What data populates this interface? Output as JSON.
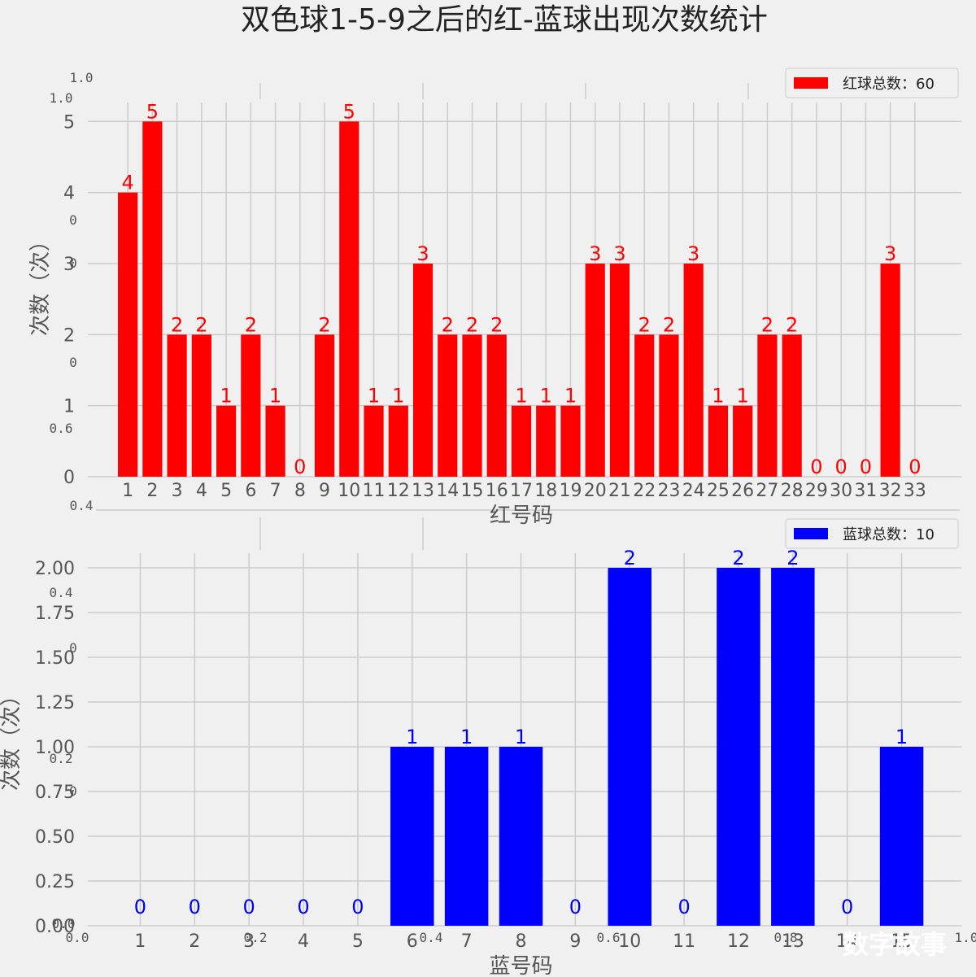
{
  "title": "双色球1-5-9之后的红-蓝球出现次数统计",
  "watermark": "数字故事",
  "ghost_ticks": {
    "left": [
      "1.0",
      "1.0",
      "0",
      "0",
      "0",
      "0.6",
      "0.4",
      "0.4",
      "0",
      "0.2",
      "0",
      "0.0"
    ],
    "bottom": [
      "0.0",
      "0.2",
      "0.4",
      "0.6",
      "0.8",
      "1.0"
    ]
  },
  "chart_data": [
    {
      "type": "bar",
      "title": "",
      "xlabel": "红号码",
      "ylabel": "次数（次）",
      "legend": "红球总数：60",
      "legend_position": "top-right",
      "color": "#ff0000",
      "ylim": [
        0,
        5.45
      ],
      "yticks": [
        "0",
        "1",
        "2",
        "3",
        "4",
        "5"
      ],
      "categories": [
        "1",
        "2",
        "3",
        "4",
        "5",
        "6",
        "7",
        "8",
        "9",
        "10",
        "11",
        "12",
        "13",
        "14",
        "15",
        "16",
        "17",
        "18",
        "19",
        "20",
        "21",
        "22",
        "23",
        "24",
        "25",
        "26",
        "27",
        "28",
        "29",
        "30",
        "31",
        "32",
        "33"
      ],
      "values": [
        4,
        5,
        2,
        2,
        1,
        2,
        1,
        0,
        2,
        5,
        1,
        1,
        3,
        2,
        2,
        2,
        1,
        1,
        1,
        3,
        3,
        2,
        2,
        3,
        1,
        1,
        2,
        2,
        0,
        0,
        0,
        3,
        0
      ],
      "labels": [
        "4",
        "5",
        "2",
        "2",
        "1",
        "2",
        "1",
        "0",
        "2",
        "5",
        "1",
        "1",
        "3",
        "2",
        "2",
        "2",
        "1",
        "1",
        "1",
        "3",
        "3",
        "2",
        "2",
        "3",
        "1",
        "1",
        "2",
        "2",
        "0",
        "0",
        "0",
        "3",
        "0"
      ],
      "grid": true
    },
    {
      "type": "bar",
      "title": "",
      "xlabel": "蓝号码",
      "ylabel": "次数（次）",
      "legend": "蓝球总数：10",
      "legend_position": "top-right",
      "color": "#0000ff",
      "ylim": [
        0,
        2.1
      ],
      "yticks": [
        "0.00",
        "0.25",
        "0.50",
        "0.75",
        "1.00",
        "1.25",
        "1.50",
        "1.75",
        "2.00"
      ],
      "categories": [
        "1",
        "2",
        "3",
        "4",
        "5",
        "6",
        "7",
        "8",
        "9",
        "10",
        "11",
        "12",
        "13",
        "14",
        "15"
      ],
      "values": [
        0,
        0,
        0,
        0,
        0,
        1,
        1,
        1,
        0,
        2,
        0,
        2,
        2,
        0,
        1
      ],
      "labels": [
        "0",
        "0",
        "0",
        "0",
        "0",
        "1",
        "1",
        "1",
        "0",
        "2",
        "0",
        "2",
        "2",
        "0",
        "1"
      ],
      "grid": true
    }
  ]
}
